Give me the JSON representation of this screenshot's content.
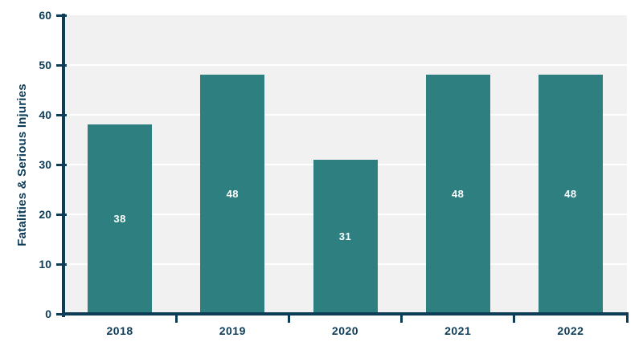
{
  "chart_data": {
    "type": "bar",
    "categories": [
      "2018",
      "2019",
      "2020",
      "2021",
      "2022"
    ],
    "values": [
      38,
      48,
      31,
      48,
      48
    ],
    "bar_value_labels": [
      "38",
      "48",
      "31",
      "48",
      "48"
    ],
    "title": "",
    "xlabel": "",
    "ylabel": "Fatalities & Serious Injuries",
    "ylim": [
      0,
      60
    ],
    "yticks": [
      0,
      10,
      20,
      30,
      40,
      50,
      60
    ],
    "ytick_labels": [
      "0",
      "10",
      "20",
      "30",
      "40",
      "50",
      "60"
    ],
    "grid": "horizontal white gridlines on",
    "legend": "none",
    "bar_labels_position": "inside-center",
    "colors": {
      "bar": "#2E7F80",
      "axis_and_text": "#0D3C58",
      "bar_label_text": "#FFFFFF",
      "plot_background": "#F1F1F1",
      "gridline": "#FFFFFF",
      "page_background": "#FFFFFF"
    }
  }
}
